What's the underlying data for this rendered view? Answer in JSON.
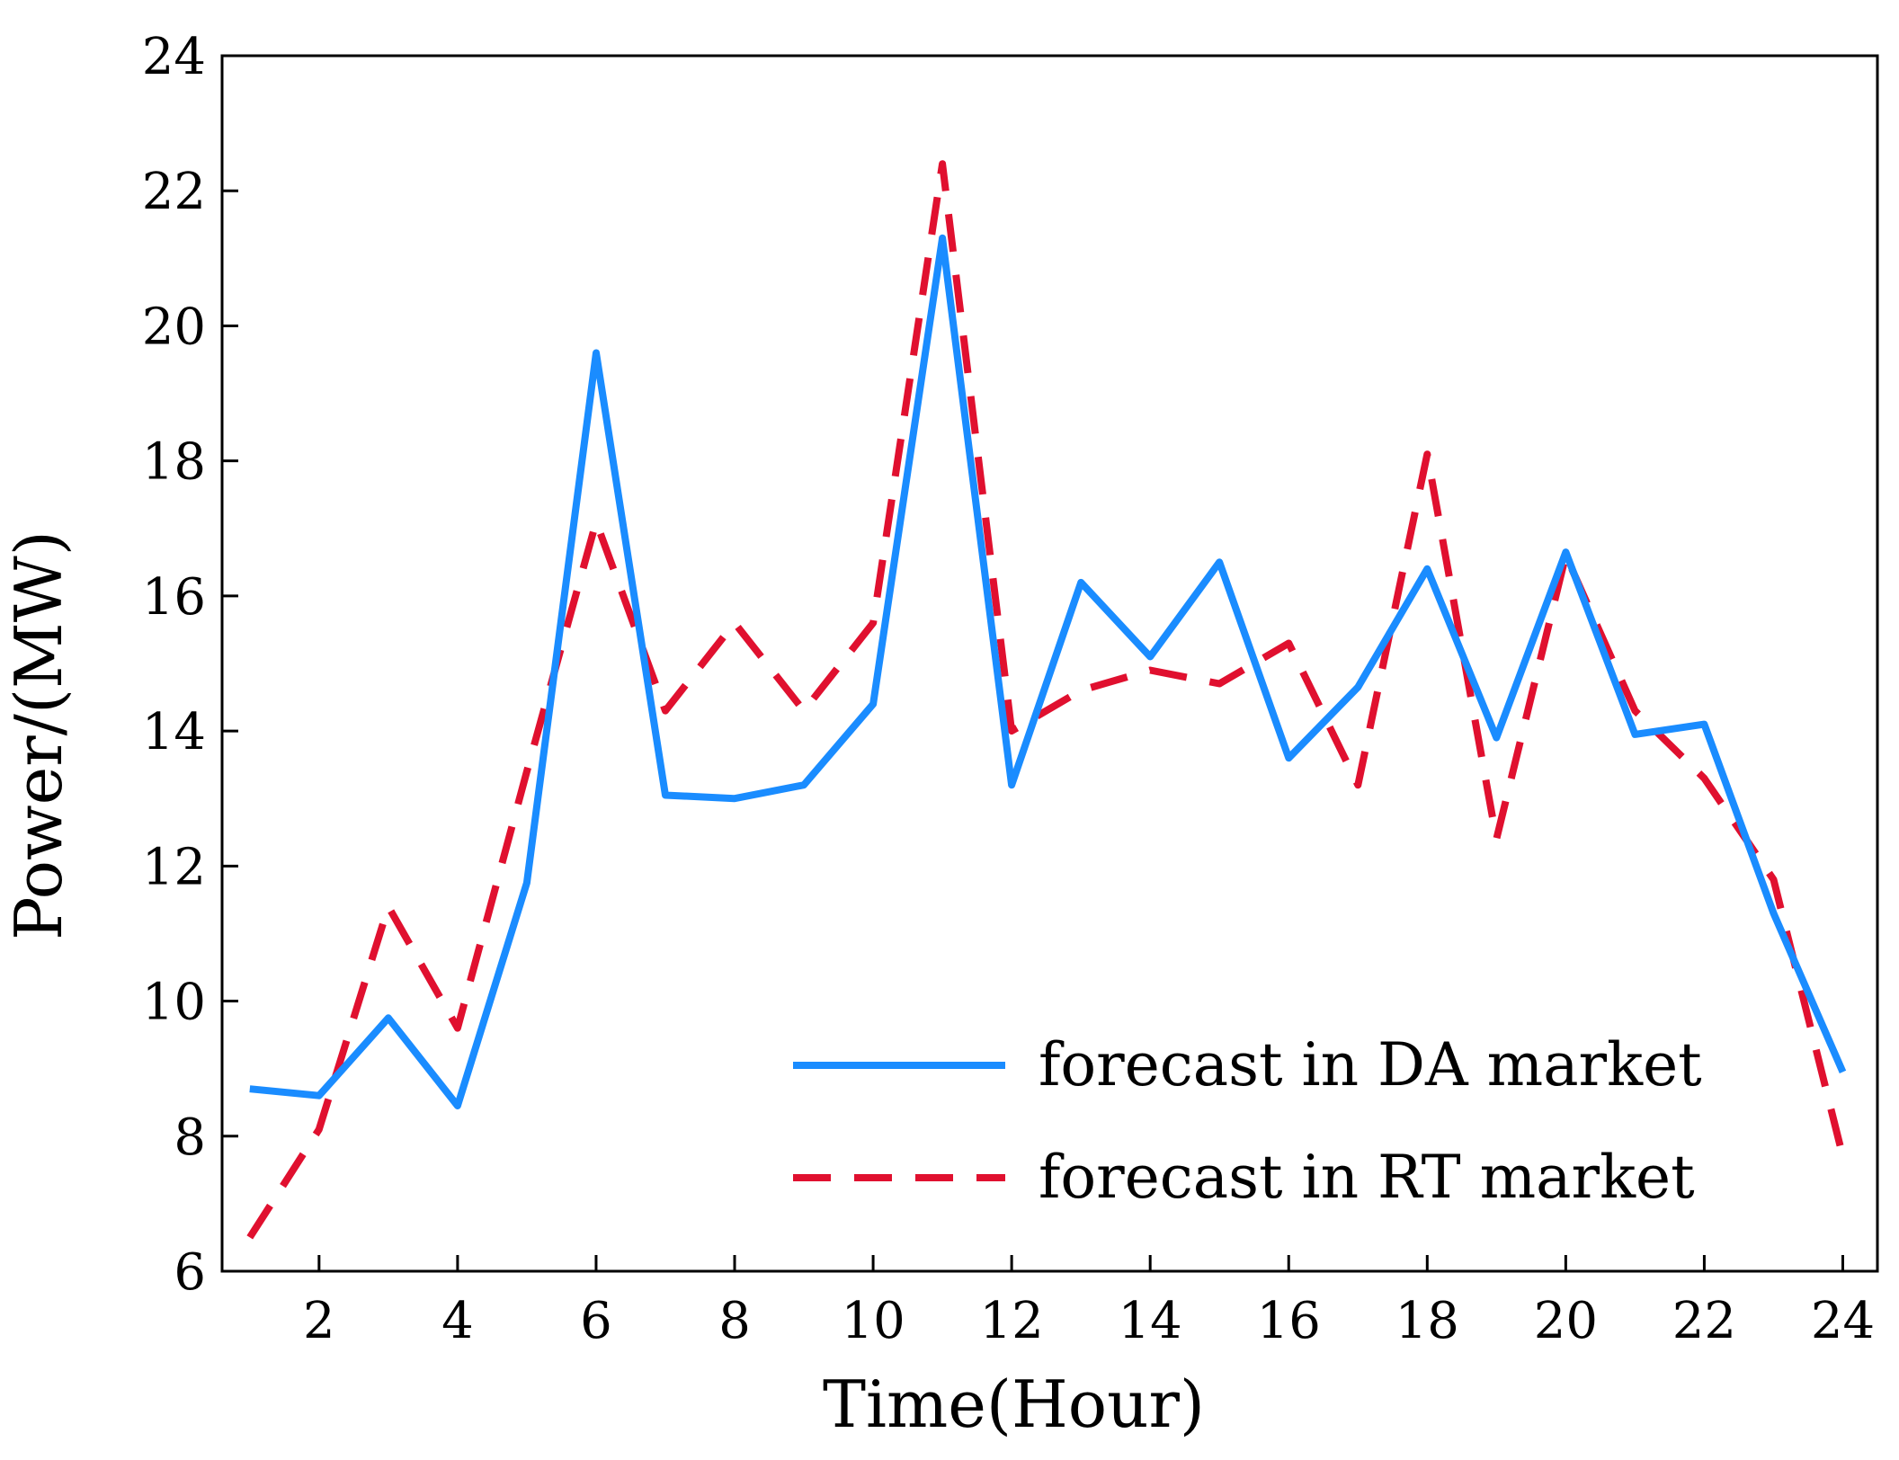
{
  "chart_data": {
    "type": "line",
    "title": "",
    "xlabel": "Time(Hour)",
    "ylabel": "Power/(MW)",
    "xlim": [
      0.6,
      24.5
    ],
    "ylim": [
      6,
      24
    ],
    "x": [
      1,
      2,
      3,
      4,
      5,
      6,
      7,
      8,
      9,
      10,
      11,
      12,
      13,
      14,
      15,
      16,
      17,
      18,
      19,
      20,
      21,
      22,
      23,
      24
    ],
    "xticks": [
      2,
      4,
      6,
      8,
      10,
      12,
      14,
      16,
      18,
      20,
      22,
      24
    ],
    "yticks": [
      6,
      8,
      10,
      12,
      14,
      16,
      18,
      20,
      22,
      24
    ],
    "legend_position": "bottom-right",
    "grid": false,
    "series": [
      {
        "name": "forecast in DA market",
        "style": "solid",
        "color": "#1a8cff",
        "values": [
          8.7,
          8.6,
          9.75,
          8.45,
          11.75,
          19.6,
          13.05,
          13.0,
          13.2,
          14.4,
          21.3,
          13.2,
          16.2,
          15.1,
          16.5,
          13.6,
          14.65,
          16.4,
          13.9,
          16.65,
          13.95,
          14.1,
          11.3,
          8.95
        ]
      },
      {
        "name": "forecast in RT market",
        "style": "dashed",
        "color": "#e0102f",
        "values": [
          6.5,
          8.1,
          11.4,
          9.6,
          13.4,
          17.1,
          14.3,
          15.6,
          14.3,
          15.6,
          22.4,
          14.0,
          14.6,
          14.9,
          14.7,
          15.3,
          13.2,
          18.1,
          12.4,
          16.6,
          14.3,
          13.3,
          11.8,
          7.7
        ]
      }
    ]
  }
}
